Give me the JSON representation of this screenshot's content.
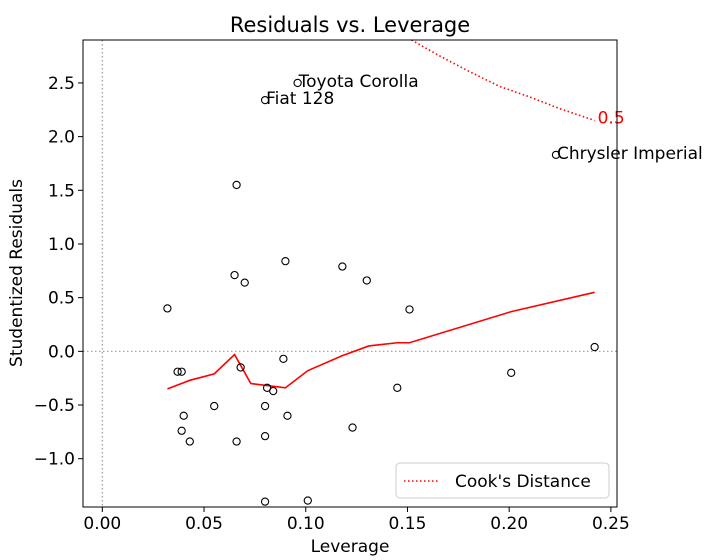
{
  "chart_data": {
    "type": "scatter",
    "title": "Residuals vs. Leverage",
    "xlabel": "Leverage",
    "ylabel": "Studentized Residuals",
    "xlim": [
      -0.0095,
      0.253
    ],
    "ylim": [
      -1.45,
      2.9
    ],
    "xticks": [
      0.0,
      0.05,
      0.1,
      0.15,
      0.2,
      0.25
    ],
    "xtick_labels": [
      "0.00",
      "0.05",
      "0.10",
      "0.15",
      "0.20",
      "0.25"
    ],
    "yticks": [
      -1.0,
      -0.5,
      0.0,
      0.5,
      1.0,
      1.5,
      2.0,
      2.5
    ],
    "ytick_labels": [
      "−1.0",
      "−0.5",
      "0.0",
      "0.5",
      "1.0",
      "1.5",
      "2.0",
      "2.5"
    ],
    "grid": false,
    "reference_lines": {
      "h": 0.0,
      "v": 0.0,
      "style": "dotted",
      "color": "#999999"
    },
    "points": [
      {
        "x": 0.032,
        "y": 0.4
      },
      {
        "x": 0.037,
        "y": -0.19
      },
      {
        "x": 0.039,
        "y": -0.19
      },
      {
        "x": 0.04,
        "y": -0.6
      },
      {
        "x": 0.039,
        "y": -0.74
      },
      {
        "x": 0.043,
        "y": -0.84
      },
      {
        "x": 0.055,
        "y": -0.51
      },
      {
        "x": 0.065,
        "y": 0.71
      },
      {
        "x": 0.066,
        "y": -0.84
      },
      {
        "x": 0.066,
        "y": 1.55
      },
      {
        "x": 0.068,
        "y": -0.15
      },
      {
        "x": 0.07,
        "y": 0.64
      },
      {
        "x": 0.08,
        "y": -0.51
      },
      {
        "x": 0.08,
        "y": -0.79
      },
      {
        "x": 0.081,
        "y": -0.34
      },
      {
        "x": 0.08,
        "y": 2.34
      },
      {
        "x": 0.084,
        "y": -0.37
      },
      {
        "x": 0.089,
        "y": -0.07
      },
      {
        "x": 0.09,
        "y": 0.84
      },
      {
        "x": 0.091,
        "y": -0.6
      },
      {
        "x": 0.096,
        "y": 2.5
      },
      {
        "x": 0.08,
        "y": -1.4
      },
      {
        "x": 0.101,
        "y": -1.39
      },
      {
        "x": 0.118,
        "y": 0.79
      },
      {
        "x": 0.123,
        "y": -0.71
      },
      {
        "x": 0.13,
        "y": 0.66
      },
      {
        "x": 0.145,
        "y": -0.34
      },
      {
        "x": 0.151,
        "y": 0.39
      },
      {
        "x": 0.201,
        "y": -0.2
      },
      {
        "x": 0.223,
        "y": 1.83
      },
      {
        "x": 0.242,
        "y": 0.04
      }
    ],
    "loess_line": {
      "color": "#ff0000",
      "x": [
        0.032,
        0.043,
        0.055,
        0.065,
        0.073,
        0.09,
        0.101,
        0.118,
        0.131,
        0.145,
        0.151,
        0.201,
        0.242
      ],
      "y": [
        -0.35,
        -0.27,
        -0.21,
        -0.03,
        -0.3,
        -0.34,
        -0.18,
        -0.04,
        0.05,
        0.08,
        0.08,
        0.37,
        0.55
      ]
    },
    "cooks_distance": {
      "name": "Cook's Distance",
      "label": "0.5",
      "color": "#ff0000",
      "x": [
        0.152,
        0.165,
        0.18,
        0.195,
        0.21,
        0.225,
        0.242
      ],
      "y": [
        2.9,
        2.76,
        2.61,
        2.47,
        2.37,
        2.26,
        2.15
      ]
    },
    "annotations": [
      {
        "text": "Toyota Corolla",
        "x": 0.096,
        "y": 2.5
      },
      {
        "text": "Fiat 128",
        "x": 0.08,
        "y": 2.34
      },
      {
        "text": "Chrysler Imperial",
        "x": 0.223,
        "y": 1.83
      }
    ],
    "legend": {
      "position": "lower-right",
      "entries": [
        "Cook's Distance"
      ]
    }
  }
}
